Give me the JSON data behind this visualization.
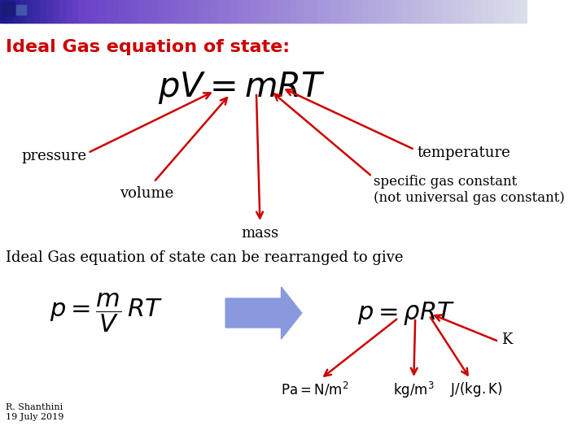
{
  "title": "Ideal Gas equation of state:",
  "title_color": "#cc0000",
  "title_fontsize": 16,
  "bg_color": "#ffffff",
  "equation1": "$pV = mRT$",
  "eq1_fontsize": 30,
  "label_pressure": "pressure",
  "label_volume": "volume",
  "label_mass": "mass",
  "label_temperature": "temperature",
  "label_specific": "specific gas constant\n(not universal gas constant)",
  "arrow_color": "#cc0000",
  "label_color": "#000000",
  "label_fontsize": 13,
  "subtitle": "Ideal Gas equation of state can be rearranged to give",
  "subtitle_fontsize": 13,
  "equation2a": "$p = \\dfrac{m}{V}\\,RT$",
  "equation2b": "$p = \\rho RT$",
  "eq2_fontsize": 22,
  "label_Pa": "$\\mathrm{Pa = N/m^2}$",
  "label_kgm3": "$\\mathrm{kg/m^3}$",
  "label_J": "$\\mathrm{J/(kg.K)}$",
  "label_K": "K",
  "footer": "R. Shanthini\n19 July 2019",
  "footer_fontsize": 8,
  "header_gradient_left": "#1a1a8c",
  "header_gradient_right": "#d0d8e8"
}
